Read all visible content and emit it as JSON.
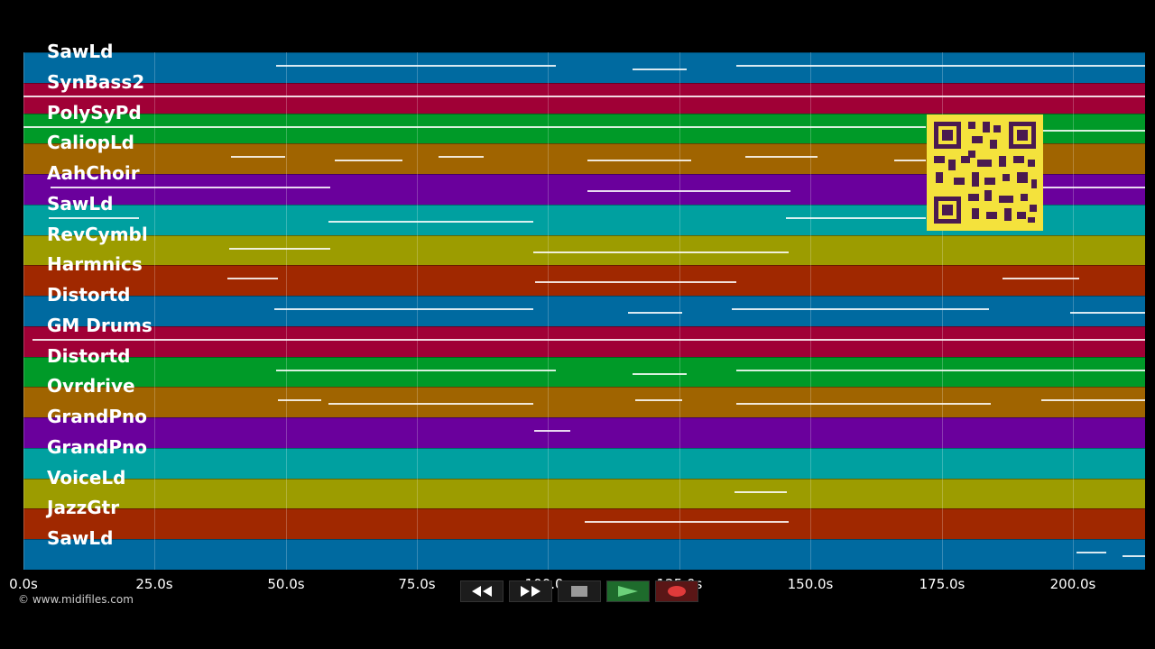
{
  "tracks": [
    {
      "name": "SawLd",
      "color": "#006aa0"
    },
    {
      "name": "SynBass2",
      "color": "#a00036"
    },
    {
      "name": "PolySyPd",
      "color": "#009a28"
    },
    {
      "name": "CaliopLd",
      "color": "#a06400"
    },
    {
      "name": "AahChoir",
      "color": "#6a009c"
    },
    {
      "name": "SawLd",
      "color": "#00a0a0"
    },
    {
      "name": "RevCymbl",
      "color": "#9c9c00"
    },
    {
      "name": "Harmnics",
      "color": "#a02800"
    },
    {
      "name": "Distortd",
      "color": "#006aa0"
    },
    {
      "name": "GM Drums",
      "color": "#a00036"
    },
    {
      "name": "Distortd",
      "color": "#009a28"
    },
    {
      "name": "Ovrdrive",
      "color": "#a06400"
    },
    {
      "name": "GrandPno",
      "color": "#6a009c"
    },
    {
      "name": "GrandPno",
      "color": "#00a0a0"
    },
    {
      "name": "VoiceLd",
      "color": "#9c9c00"
    },
    {
      "name": "JazzGtr",
      "color": "#a02800"
    },
    {
      "name": "SawLd",
      "color": "#006aa0"
    }
  ],
  "timeline": {
    "ticks": [
      "0.0s",
      "25.0s",
      "50.0s",
      "75.0s",
      "100.0s",
      "125.0s",
      "150.0s",
      "175.0s",
      "200.0s"
    ]
  },
  "copyright": "© www.midifiles.com",
  "transport": {
    "buttons": [
      "rewind",
      "fast-forward",
      "stop",
      "play",
      "record"
    ],
    "colors": {
      "play": "#1e6b2c",
      "record": "#e03a3a",
      "stop": "#9a9a9a"
    }
  },
  "qr_code": {
    "color": "#f4e23c"
  }
}
